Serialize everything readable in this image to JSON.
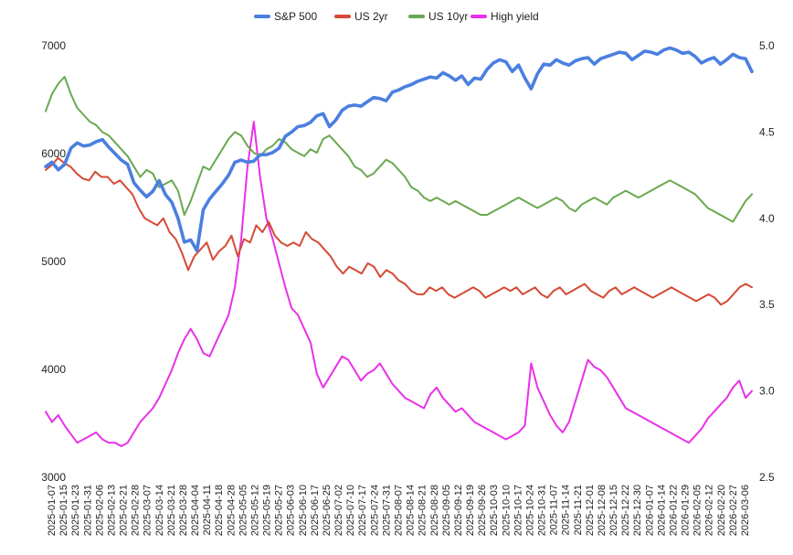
{
  "chart_data": {
    "type": "line",
    "title": "",
    "xlabel": "",
    "ylabel": "",
    "legend_position": "top",
    "grid": false,
    "x_tick_labels": [
      "2025-01-07",
      "2025-01-15",
      "2025-01-23",
      "2025-01-31",
      "2025-02-06",
      "2025-02-13",
      "2025-02-21",
      "2025-02-28",
      "2025-03-07",
      "2025-03-14",
      "2025-03-21",
      "2025-03-28",
      "2025-04-04",
      "2025-04-11",
      "2025-04-18",
      "2025-04-28",
      "2025-05-05",
      "2025-05-12",
      "2025-05-19",
      "2025-05-27",
      "2025-06-03",
      "2025-06-10",
      "2025-06-17",
      "2025-06-25",
      "2025-07-02",
      "2025-07-10",
      "2025-07-17",
      "2025-07-24",
      "2025-07-31",
      "2025-08-07",
      "2025-08-14",
      "2025-08-21",
      "2025-08-28",
      "2025-09-05",
      "2025-09-12",
      "2025-09-19",
      "2025-09-26",
      "2025-10-03",
      "2025-10-10",
      "2025-10-17",
      "2025-10-24",
      "2025-10-31",
      "2025-11-07",
      "2025-11-14",
      "2025-11-21",
      "2025-12-01",
      "2025-12-08",
      "2025-12-15",
      "2025-12-22",
      "2025-12-30",
      "2026-01-07",
      "2026-01-14",
      "2026-01-22",
      "2026-01-29",
      "2026-02-05",
      "2026-02-12",
      "2026-02-20",
      "2026-02-27",
      "2026-03-06"
    ],
    "y_left": {
      "min": 3000,
      "max": 7000,
      "ticks": [
        3000,
        4000,
        5000,
        6000,
        7000
      ],
      "tick_labels": [
        "3000",
        "4000",
        "5000",
        "6000",
        "7000"
      ]
    },
    "y_right": {
      "min": 2.5,
      "max": 5.0,
      "ticks": [
        2.5,
        3.0,
        3.5,
        4.0,
        4.5,
        5.0
      ],
      "tick_labels": [
        "2.5",
        "3.0",
        "3.5",
        "4.0",
        "4.5",
        "5.0"
      ]
    },
    "series": [
      {
        "name": "S&P 500",
        "color": "#4a7fe0",
        "axis": "left",
        "values": [
          5880,
          5920,
          5850,
          5900,
          6050,
          6100,
          6070,
          6080,
          6110,
          6130,
          6060,
          6000,
          5940,
          5900,
          5730,
          5660,
          5600,
          5650,
          5750,
          5620,
          5550,
          5400,
          5180,
          5200,
          5100,
          5480,
          5580,
          5650,
          5720,
          5800,
          5920,
          5940,
          5920,
          5930,
          5990,
          5990,
          6010,
          6050,
          6160,
          6200,
          6250,
          6260,
          6290,
          6350,
          6370,
          6250,
          6310,
          6400,
          6440,
          6450,
          6440,
          6480,
          6520,
          6510,
          6490,
          6570,
          6590,
          6620,
          6640,
          6670,
          6690,
          6710,
          6700,
          6750,
          6720,
          6680,
          6720,
          6640,
          6700,
          6690,
          6780,
          6840,
          6870,
          6850,
          6760,
          6820,
          6700,
          6600,
          6740,
          6830,
          6820,
          6870,
          6840,
          6820,
          6860,
          6880,
          6890,
          6830,
          6880,
          6900,
          6920,
          6940,
          6930,
          6870,
          6910,
          6950,
          6940,
          6920,
          6960,
          6980,
          6960,
          6930,
          6940,
          6900,
          6840,
          6870,
          6890,
          6830,
          6870,
          6920,
          6890,
          6880,
          6760
        ]
      },
      {
        "name": "US 2yr",
        "color": "#d54a36",
        "axis": "right",
        "values": [
          4.28,
          4.31,
          4.35,
          4.32,
          4.3,
          4.26,
          4.23,
          4.22,
          4.27,
          4.24,
          4.24,
          4.2,
          4.22,
          4.18,
          4.14,
          4.06,
          4.0,
          3.98,
          3.96,
          4.0,
          3.92,
          3.88,
          3.8,
          3.7,
          3.78,
          3.82,
          3.86,
          3.76,
          3.81,
          3.84,
          3.9,
          3.78,
          3.88,
          3.86,
          3.96,
          3.92,
          3.98,
          3.9,
          3.86,
          3.84,
          3.86,
          3.84,
          3.92,
          3.88,
          3.86,
          3.82,
          3.78,
          3.72,
          3.68,
          3.72,
          3.7,
          3.68,
          3.74,
          3.72,
          3.66,
          3.7,
          3.68,
          3.64,
          3.62,
          3.58,
          3.56,
          3.56,
          3.6,
          3.58,
          3.6,
          3.56,
          3.54,
          3.56,
          3.58,
          3.6,
          3.58,
          3.54,
          3.56,
          3.58,
          3.6,
          3.58,
          3.6,
          3.56,
          3.58,
          3.6,
          3.56,
          3.54,
          3.58,
          3.6,
          3.56,
          3.58,
          3.6,
          3.62,
          3.58,
          3.56,
          3.54,
          3.58,
          3.6,
          3.56,
          3.58,
          3.6,
          3.58,
          3.56,
          3.54,
          3.56,
          3.58,
          3.6,
          3.58,
          3.56,
          3.54,
          3.52,
          3.54,
          3.56,
          3.54,
          3.5,
          3.52,
          3.56,
          3.6,
          3.62,
          3.6
        ]
      },
      {
        "name": "US 10yr",
        "color": "#6aa84f",
        "axis": "right",
        "values": [
          4.62,
          4.72,
          4.78,
          4.82,
          4.72,
          4.64,
          4.6,
          4.56,
          4.54,
          4.5,
          4.48,
          4.44,
          4.4,
          4.36,
          4.3,
          4.24,
          4.28,
          4.26,
          4.18,
          4.2,
          4.22,
          4.16,
          4.02,
          4.1,
          4.2,
          4.3,
          4.28,
          4.34,
          4.4,
          4.46,
          4.5,
          4.48,
          4.42,
          4.38,
          4.36,
          4.4,
          4.42,
          4.46,
          4.44,
          4.4,
          4.38,
          4.36,
          4.4,
          4.38,
          4.46,
          4.48,
          4.44,
          4.4,
          4.36,
          4.3,
          4.28,
          4.24,
          4.26,
          4.3,
          4.34,
          4.32,
          4.28,
          4.24,
          4.18,
          4.16,
          4.12,
          4.1,
          4.12,
          4.1,
          4.08,
          4.1,
          4.08,
          4.06,
          4.04,
          4.02,
          4.02,
          4.04,
          4.06,
          4.08,
          4.1,
          4.12,
          4.1,
          4.08,
          4.06,
          4.08,
          4.1,
          4.12,
          4.1,
          4.06,
          4.04,
          4.08,
          4.1,
          4.12,
          4.1,
          4.08,
          4.12,
          4.14,
          4.16,
          4.14,
          4.12,
          4.14,
          4.16,
          4.18,
          4.2,
          4.22,
          4.2,
          4.18,
          4.16,
          4.14,
          4.1,
          4.06,
          4.04,
          4.02,
          4.0,
          3.98,
          4.04,
          4.1,
          4.14
        ]
      },
      {
        "name": "High yield",
        "color": "#e831e8",
        "axis": "right",
        "values": [
          2.88,
          2.82,
          2.86,
          2.8,
          2.75,
          2.7,
          2.72,
          2.74,
          2.76,
          2.72,
          2.7,
          2.7,
          2.68,
          2.7,
          2.76,
          2.82,
          2.86,
          2.9,
          2.96,
          3.04,
          3.12,
          3.22,
          3.3,
          3.36,
          3.3,
          3.22,
          3.2,
          3.28,
          3.36,
          3.44,
          3.6,
          3.88,
          4.3,
          4.56,
          4.24,
          4.0,
          3.88,
          3.74,
          3.6,
          3.48,
          3.44,
          3.36,
          3.28,
          3.1,
          3.02,
          3.08,
          3.14,
          3.2,
          3.18,
          3.12,
          3.06,
          3.1,
          3.12,
          3.16,
          3.1,
          3.04,
          3.0,
          2.96,
          2.94,
          2.92,
          2.9,
          2.98,
          3.02,
          2.96,
          2.92,
          2.88,
          2.9,
          2.86,
          2.82,
          2.8,
          2.78,
          2.76,
          2.74,
          2.72,
          2.74,
          2.76,
          2.8,
          3.16,
          3.02,
          2.94,
          2.86,
          2.8,
          2.76,
          2.82,
          2.94,
          3.06,
          3.18,
          3.14,
          3.12,
          3.08,
          3.02,
          2.96,
          2.9,
          2.88,
          2.86,
          2.84,
          2.82,
          2.8,
          2.78,
          2.76,
          2.74,
          2.72,
          2.7,
          2.74,
          2.78,
          2.84,
          2.88,
          2.92,
          2.96,
          3.02,
          3.06,
          2.96,
          3.0
        ]
      }
    ]
  }
}
